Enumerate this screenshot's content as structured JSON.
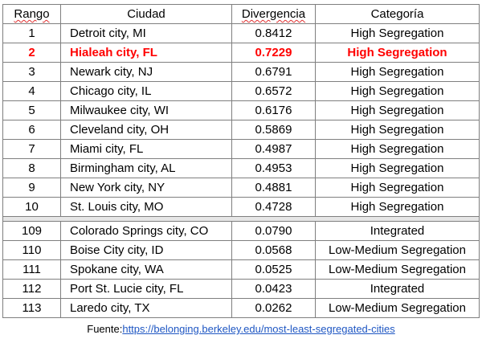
{
  "table": {
    "headers": {
      "rank": "Rango",
      "city": "Ciudad",
      "divergence": "Divergencia",
      "category": "Categoría"
    },
    "top_rows": [
      {
        "rank": "1",
        "city": "Detroit city, MI",
        "divergence": "0.8412",
        "category": "High Segregation"
      },
      {
        "rank": "2",
        "city": "Hialeah city, FL",
        "divergence": "0.7229",
        "category": "High Segregation",
        "highlight": true
      },
      {
        "rank": "3",
        "city": "Newark city, NJ",
        "divergence": "0.6791",
        "category": "High Segregation"
      },
      {
        "rank": "4",
        "city": "Chicago city, IL",
        "divergence": "0.6572",
        "category": "High Segregation"
      },
      {
        "rank": "5",
        "city": "Milwaukee city, WI",
        "divergence": "0.6176",
        "category": "High Segregation"
      },
      {
        "rank": "6",
        "city": "Cleveland city, OH",
        "divergence": "0.5869",
        "category": "High Segregation"
      },
      {
        "rank": "7",
        "city": "Miami city, FL",
        "divergence": "0.4987",
        "category": "High Segregation"
      },
      {
        "rank": "8",
        "city": "Birmingham city, AL",
        "divergence": "0.4953",
        "category": "High Segregation"
      },
      {
        "rank": "9",
        "city": "New York city, NY",
        "divergence": "0.4881",
        "category": "High Segregation"
      },
      {
        "rank": "10",
        "city": "St. Louis city, MO",
        "divergence": "0.4728",
        "category": "High Segregation"
      }
    ],
    "bottom_rows": [
      {
        "rank": "109",
        "city": "Colorado Springs city, CO",
        "divergence": "0.0790",
        "category": "Integrated"
      },
      {
        "rank": "110",
        "city": "Boise City city, ID",
        "divergence": "0.0568",
        "category": "Low-Medium Segregation"
      },
      {
        "rank": "111",
        "city": "Spokane city, WA",
        "divergence": "0.0525",
        "category": "Low-Medium Segregation"
      },
      {
        "rank": "112",
        "city": "Port St. Lucie city, FL",
        "divergence": "0.0423",
        "category": "Integrated"
      },
      {
        "rank": "113",
        "city": "Laredo city, TX",
        "divergence": "0.0262",
        "category": "Low-Medium Segregation"
      }
    ]
  },
  "source": {
    "label": "Fuente:",
    "link_text": "https://belonging.berkeley.edu/most-least-segregated-cities"
  },
  "colors": {
    "highlight": "#ff0000",
    "link": "#1f57c3",
    "border": "#7f7f7f",
    "separator": "#e6e6e6"
  }
}
